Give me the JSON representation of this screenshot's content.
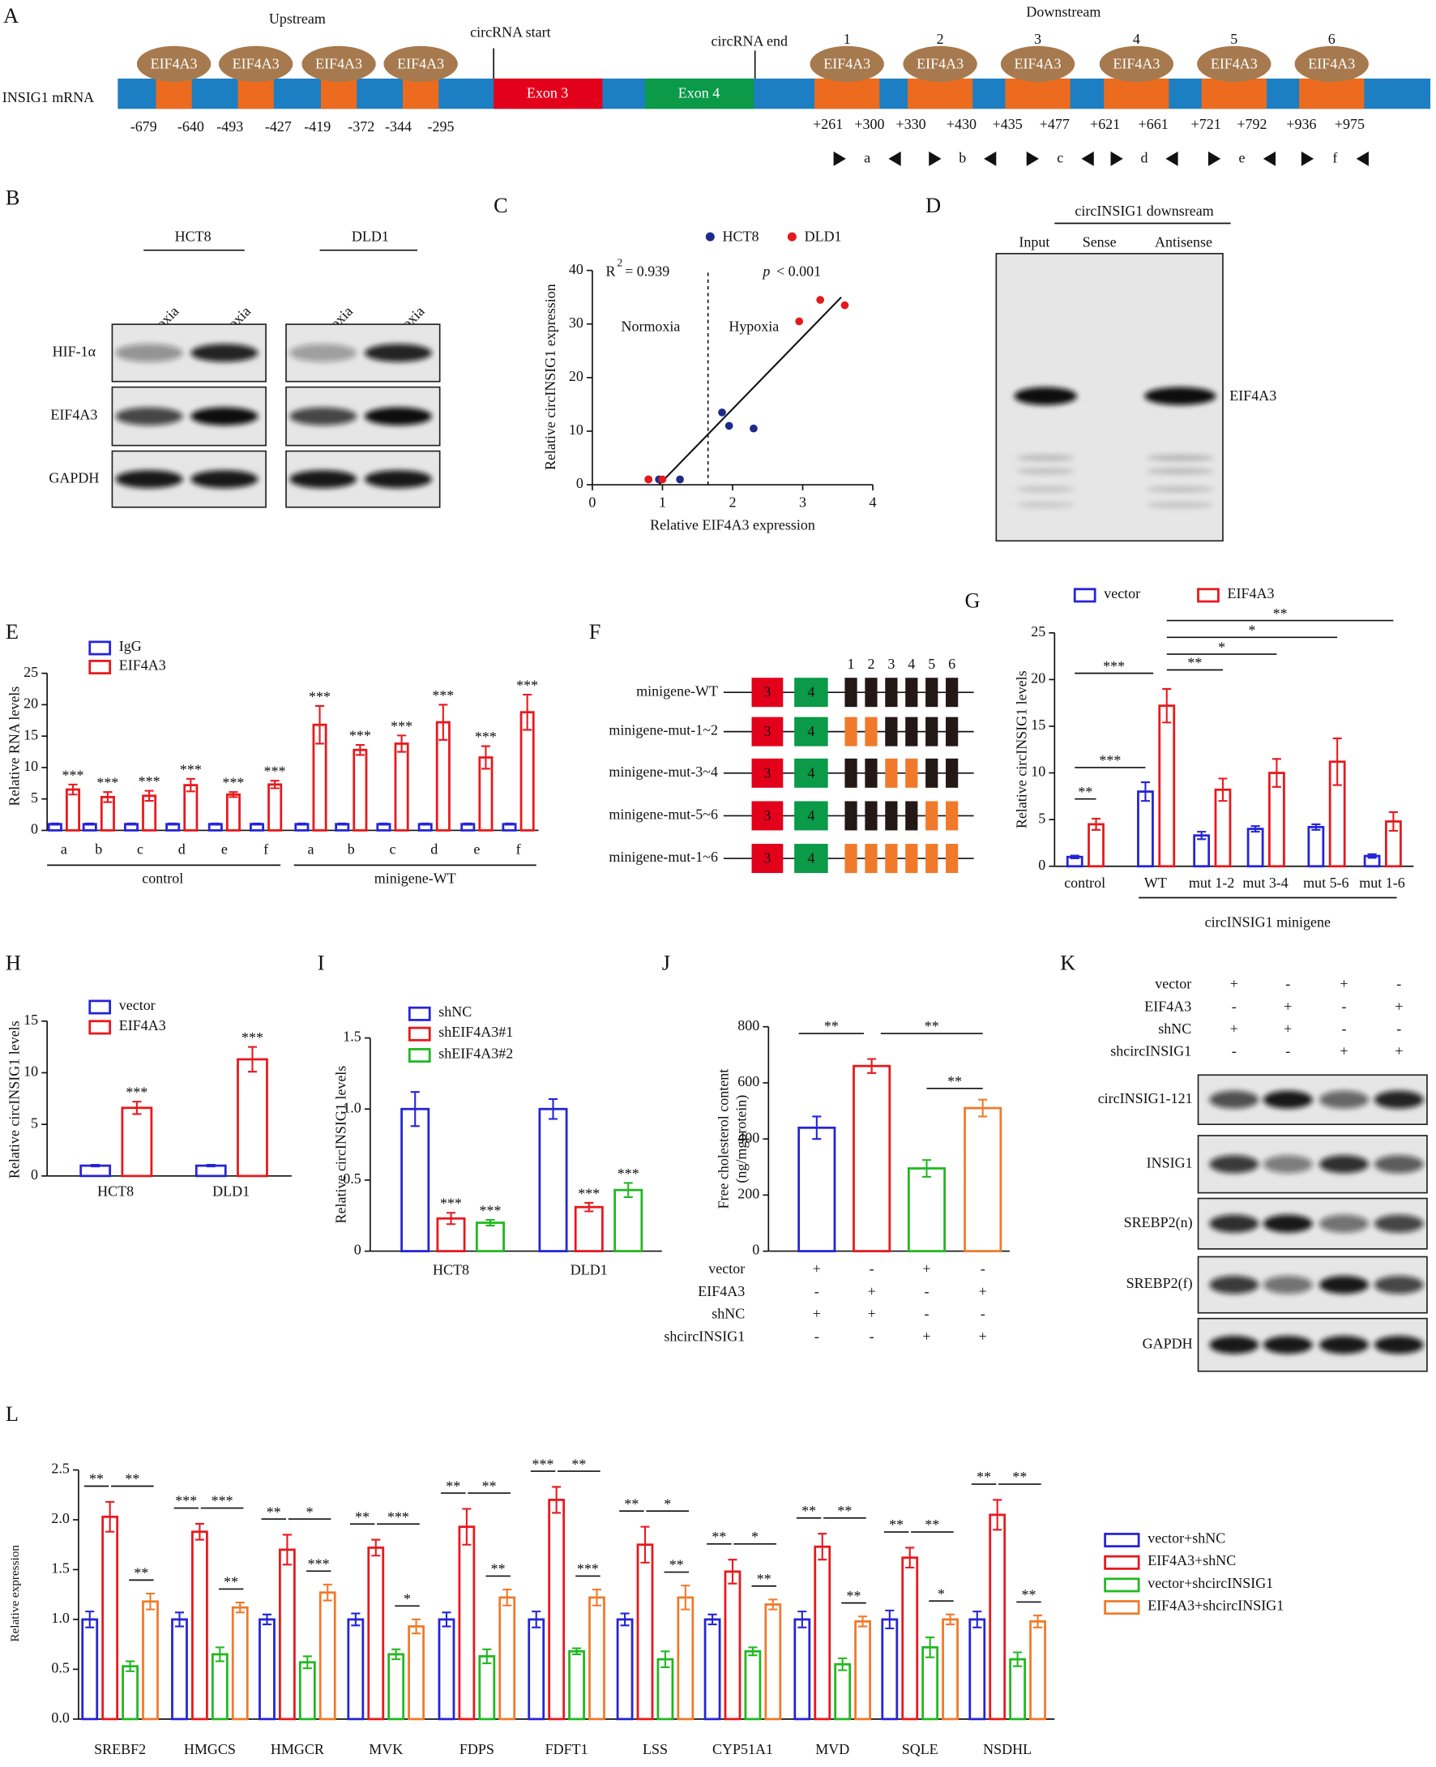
{
  "diagram_a": {
    "panel": "A",
    "upstream": "Upstream",
    "downstream": "Downstream",
    "circ_start": "circRNA start",
    "circ_end": "circRNA end",
    "track": "INSIG1 mRNA",
    "exons": [
      "Exon 3",
      "Exon 4"
    ],
    "protein": "EIF4A3",
    "site_numbers": [
      "1",
      "2",
      "3",
      "4",
      "5",
      "6"
    ],
    "upstream_positions": [
      "-679",
      "-640",
      "-493",
      "-427",
      "-419",
      "-372",
      "-344",
      "-295"
    ],
    "downstream_positions": [
      "+261",
      "+300",
      "+330",
      "+430",
      "+435",
      "+477",
      "+621",
      "+661",
      "+721",
      "+792",
      "+936",
      "+975"
    ],
    "primers": [
      "a",
      "b",
      "c",
      "d",
      "e",
      "f"
    ]
  },
  "blot_b": {
    "panel": "B",
    "cell_lines": [
      "HCT8",
      "DLD1"
    ],
    "conditions": [
      "Normoxia",
      "Hypoxia"
    ],
    "proteins": [
      "HIF-1α",
      "EIF4A3",
      "GAPDH"
    ]
  },
  "blot_d": {
    "panel": "D",
    "title": "circINSIG1 downsream",
    "lanes": [
      "Input",
      "Sense",
      "Antisense"
    ],
    "band": "EIF4A3"
  },
  "diagram_f": {
    "panel": "F",
    "exons": [
      "3",
      "4"
    ],
    "site_numbers": [
      "1",
      "2",
      "3",
      "4",
      "5",
      "6"
    ],
    "constructs": [
      {
        "name": "minigene-WT",
        "mutated": [
          false,
          false,
          false,
          false,
          false,
          false
        ]
      },
      {
        "name": "minigene-mut-1~2",
        "mutated": [
          true,
          true,
          false,
          false,
          false,
          false
        ]
      },
      {
        "name": "minigene-mut-3~4",
        "mutated": [
          false,
          false,
          true,
          true,
          false,
          false
        ]
      },
      {
        "name": "minigene-mut-5~6",
        "mutated": [
          false,
          false,
          false,
          false,
          true,
          true
        ]
      },
      {
        "name": "minigene-mut-1~6",
        "mutated": [
          true,
          true,
          true,
          true,
          true,
          true
        ]
      }
    ]
  },
  "blot_k": {
    "panel": "K",
    "conditions": [
      {
        "name": "vector",
        "signs": [
          "+",
          "-",
          "+",
          "-"
        ]
      },
      {
        "name": "EIF4A3",
        "signs": [
          "-",
          "+",
          "-",
          "+"
        ]
      },
      {
        "name": "shNC",
        "signs": [
          "+",
          "+",
          "-",
          "-"
        ]
      },
      {
        "name": "shcircINSIG1",
        "signs": [
          "-",
          "-",
          "+",
          "+"
        ]
      }
    ],
    "proteins": [
      "circINSIG1-121",
      "INSIG1",
      "SREBP2(n)",
      "SREBP2(f)",
      "GAPDH"
    ]
  },
  "chart_data": [
    {
      "type": "scatter",
      "panel": "C",
      "xlabel": "Relative EIF4A3 expression",
      "ylabel": "Relative circINSIG1 expression",
      "xlim": [
        0,
        4
      ],
      "xticks": [
        0,
        1,
        2,
        3,
        4
      ],
      "ylim": [
        0,
        40
      ],
      "yticks": [
        0,
        10,
        20,
        30,
        40
      ],
      "series": [
        {
          "name": "HCT8",
          "color": "#1c2b8c",
          "x": [
            0.8,
            0.95,
            1.25,
            1.85,
            1.95,
            2.3
          ],
          "values": [
            1,
            1,
            1,
            13.5,
            11,
            10.5
          ]
        },
        {
          "name": "DLD1",
          "color": "#e3191c",
          "x": [
            0.8,
            1.0,
            2.95,
            3.25,
            3.6
          ],
          "values": [
            1,
            1,
            30.5,
            34.5,
            33.5
          ]
        }
      ],
      "fit_line": {
        "x": [
          0.95,
          3.55
        ],
        "values": [
          0,
          35
        ]
      },
      "divider_x": 1.65,
      "r_squared": {
        "symbol": "R",
        "superscript": "2",
        "text": "= 0.939"
      },
      "p_value": {
        "symbol": "p",
        "text": "< 0.001"
      },
      "region_labels": [
        "Normoxia",
        "Hypoxia"
      ],
      "legend": "top"
    },
    {
      "type": "bar",
      "panel": "E",
      "ylabel": "Relative RNA levels",
      "categories": [
        "a",
        "b",
        "c",
        "d",
        "e",
        "f",
        "a",
        "b",
        "c",
        "d",
        "e",
        "f"
      ],
      "groups": [
        "control",
        "minigene-WT"
      ],
      "ylim": [
        0,
        25
      ],
      "yticks": [
        0,
        5,
        10,
        15,
        20,
        25
      ],
      "legend": "top-left",
      "series": [
        {
          "name": "IgG",
          "color": "#2424d6",
          "values": [
            1,
            1,
            1,
            1,
            1,
            1,
            1,
            1,
            1,
            1,
            1,
            1
          ],
          "errors": [
            0.1,
            0.1,
            0.1,
            0.1,
            0.1,
            0.1,
            0.1,
            0.1,
            0.1,
            0.1,
            0.1,
            0.1
          ]
        },
        {
          "name": "EIF4A3",
          "color": "#e8181c",
          "values": [
            6.5,
            5.3,
            5.5,
            7.2,
            5.7,
            7.3,
            16.8,
            12.8,
            13.8,
            17.2,
            11.6,
            18.8
          ],
          "errors": [
            0.8,
            0.8,
            0.8,
            1.0,
            0.4,
            0.6,
            3.0,
            0.8,
            1.3,
            2.8,
            1.8,
            2.8
          ],
          "significance": [
            "***",
            "***",
            "***",
            "***",
            "***",
            "***",
            "***",
            "***",
            "***",
            "***",
            "***",
            "***"
          ]
        }
      ]
    },
    {
      "type": "bar",
      "panel": "G",
      "ylabel": "Relative circINSIG1 levels",
      "categories": [
        "control",
        "WT",
        "mut 1-2",
        "mut 3-4",
        "mut 5-6",
        "mut 1-6"
      ],
      "group_label": "circINSIG1 minigene",
      "ylim": [
        0,
        25
      ],
      "yticks": [
        0,
        5,
        10,
        15,
        20,
        25
      ],
      "legend": "top",
      "series": [
        {
          "name": "vector",
          "color": "#2424d6",
          "values": [
            1,
            8,
            3.3,
            4,
            4.2,
            1.1
          ],
          "errors": [
            0.15,
            1.0,
            0.4,
            0.3,
            0.3,
            0.2
          ]
        },
        {
          "name": "EIF4A3",
          "color": "#e8181c",
          "values": [
            4.5,
            17.2,
            8.2,
            10,
            11.2,
            4.8
          ],
          "errors": [
            0.6,
            1.8,
            1.2,
            1.5,
            2.5,
            1.0
          ]
        }
      ],
      "brackets": [
        "**",
        "***",
        "***",
        "**",
        "*",
        "*",
        "**"
      ]
    },
    {
      "type": "bar",
      "panel": "H",
      "ylabel": "Relative circINSIG1 levels",
      "categories": [
        "HCT8",
        "DLD1"
      ],
      "ylim": [
        0,
        15
      ],
      "yticks": [
        0,
        5,
        10,
        15
      ],
      "legend": "top-left",
      "series": [
        {
          "name": "vector",
          "color": "#2424d6",
          "values": [
            1,
            1
          ],
          "errors": [
            0.08,
            0.08
          ]
        },
        {
          "name": "EIF4A3",
          "color": "#e8181c",
          "values": [
            6.6,
            11.3
          ],
          "errors": [
            0.6,
            1.2
          ],
          "significance": [
            "***",
            "***"
          ]
        }
      ]
    },
    {
      "type": "bar",
      "panel": "I",
      "ylabel": "Relative circINSIG1 levels",
      "categories": [
        "HCT8",
        "DLD1"
      ],
      "ylim": [
        0,
        1.5
      ],
      "yticks": [
        0,
        0.5,
        {
          "value": 1,
          "label": "1.0"
        },
        1.5
      ],
      "legend": "top-left",
      "series": [
        {
          "name": "shNC",
          "color": "#2424d6",
          "values": [
            1,
            1
          ],
          "errors": [
            0.12,
            0.07
          ]
        },
        {
          "name": "shEIF4A3#1",
          "color": "#e8181c",
          "values": [
            0.23,
            0.31
          ],
          "errors": [
            0.04,
            0.03
          ],
          "significance": [
            "***",
            "***"
          ]
        },
        {
          "name": "shEIF4A3#2",
          "color": "#20b820",
          "values": [
            0.2,
            0.43
          ],
          "errors": [
            0.02,
            0.05
          ],
          "significance": [
            "***",
            "***"
          ]
        }
      ]
    },
    {
      "type": "bar",
      "panel": "J",
      "ylabel": [
        "Free cholesterol content",
        "(ng/mgprotein)"
      ],
      "ylim": [
        0,
        800
      ],
      "yticks": [
        0,
        200,
        400,
        600,
        800
      ],
      "series": [
        {
          "colors": [
            "#2424d6",
            "#e8181c",
            "#20b820",
            "#f07a2a"
          ],
          "values": [
            440,
            660,
            295,
            510
          ],
          "errors": [
            40,
            25,
            30,
            30
          ]
        }
      ],
      "conditions": [
        {
          "name": "vector",
          "signs": [
            "+",
            "-",
            "+",
            "-"
          ]
        },
        {
          "name": "EIF4A3",
          "signs": [
            "-",
            "+",
            "-",
            "+"
          ]
        },
        {
          "name": "shNC",
          "signs": [
            "+",
            "+",
            "-",
            "-"
          ]
        },
        {
          "name": "shcircINSIG1",
          "signs": [
            "-",
            "-",
            "+",
            "+"
          ]
        }
      ],
      "brackets": [
        "**",
        "**",
        "**"
      ]
    },
    {
      "type": "bar",
      "panel": "L",
      "ylabel": "Relative expression",
      "categories": [
        "SREBF2",
        "HMGCS",
        "HMGCR",
        "MVK",
        "FDPS",
        "FDFT1",
        "LSS",
        "CYP51A1",
        "MVD",
        "SQLE",
        "NSDHL"
      ],
      "ylim": [
        0,
        2.5
      ],
      "yticks": [
        {
          "value": 0,
          "label": "0.0"
        },
        0.5,
        {
          "value": 1,
          "label": "1.0"
        },
        1.5,
        {
          "value": 2,
          "label": "2.0"
        },
        2.5
      ],
      "legend": "right",
      "series": [
        {
          "name": "vector+shNC",
          "color": "#2424d6",
          "values": [
            1,
            1,
            1,
            1,
            1,
            1,
            1,
            1,
            1,
            1,
            1
          ],
          "errors": [
            0.08,
            0.07,
            0.05,
            0.06,
            0.07,
            0.08,
            0.06,
            0.05,
            0.08,
            0.09,
            0.08
          ]
        },
        {
          "name": "EIF4A3+shNC",
          "color": "#e8181c",
          "values": [
            2.03,
            1.88,
            1.7,
            1.72,
            1.93,
            2.2,
            1.75,
            1.48,
            1.73,
            1.62,
            2.05
          ],
          "errors": [
            0.15,
            0.08,
            0.15,
            0.08,
            0.18,
            0.13,
            0.18,
            0.12,
            0.13,
            0.1,
            0.15
          ]
        },
        {
          "name": "vector+shcircINSIG1",
          "color": "#20b820",
          "values": [
            0.53,
            0.65,
            0.57,
            0.65,
            0.63,
            0.68,
            0.6,
            0.68,
            0.55,
            0.72,
            0.6
          ],
          "errors": [
            0.05,
            0.07,
            0.06,
            0.05,
            0.07,
            0.03,
            0.08,
            0.04,
            0.06,
            0.1,
            0.07
          ]
        },
        {
          "name": "EIF4A3+shcircINSIG1",
          "color": "#f07a2a",
          "values": [
            1.18,
            1.12,
            1.27,
            0.93,
            1.22,
            1.22,
            1.22,
            1.15,
            0.98,
            1.0,
            0.98
          ],
          "errors": [
            0.08,
            0.05,
            0.08,
            0.07,
            0.08,
            0.08,
            0.12,
            0.05,
            0.05,
            0.05,
            0.06
          ]
        }
      ],
      "brackets": [
        [
          "**",
          "**",
          "**"
        ],
        [
          "***",
          "***",
          "**"
        ],
        [
          "**",
          "*",
          "***"
        ],
        [
          "**",
          "***",
          "*"
        ],
        [
          "**",
          "**",
          "**"
        ],
        [
          "***",
          "**",
          "***"
        ],
        [
          "**",
          "*",
          "**"
        ],
        [
          "**",
          "*",
          "**"
        ],
        [
          "**",
          "**",
          "**"
        ],
        [
          "**",
          "**",
          "*"
        ],
        [
          "**",
          "**",
          "**"
        ]
      ]
    }
  ]
}
